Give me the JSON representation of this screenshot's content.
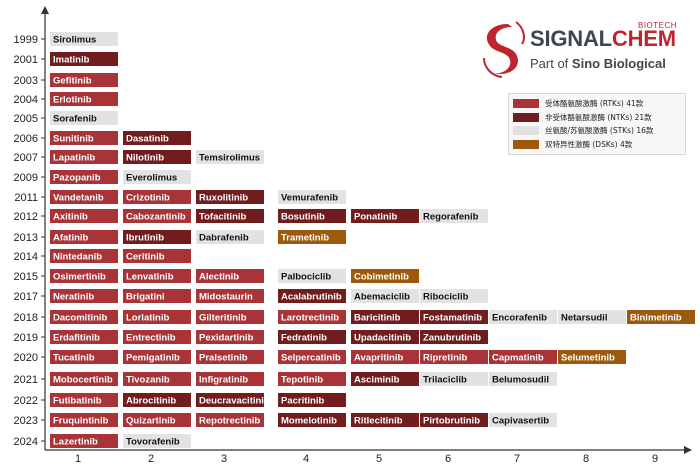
{
  "logo": {
    "brand_part1": "SIGNAL",
    "brand_part2": "CHEM",
    "biotech": "BIOTECH",
    "tagline_prefix": "Part of ",
    "tagline_bold": "Sino Biological",
    "brand_color": "#c0252f",
    "text_color": "#3f4652"
  },
  "colors": {
    "RTK": "#a83438",
    "NTK": "#711d1e",
    "STK": "#e2e2e2",
    "DSK": "#9e5a0c"
  },
  "legend": [
    {
      "key": "RTK",
      "label": "受体酪氨酸激酶 (RTKs) 41款"
    },
    {
      "key": "NTK",
      "label": "非受体酪氨酸激酶 (NTKs) 21款"
    },
    {
      "key": "STK",
      "label": "丝氨酸/苏氨酸激酶 (STKs) 16款"
    },
    {
      "key": "DSK",
      "label": "双特异性激酶 (DSKs) 4款"
    }
  ],
  "chart_data": {
    "type": "table",
    "x_ticks": [
      "1",
      "2",
      "3",
      "4",
      "5",
      "6",
      "7",
      "8",
      "9"
    ],
    "rows": [
      {
        "year": "1999",
        "drugs": [
          {
            "name": "Sirolimus",
            "type": "STK"
          }
        ]
      },
      {
        "year": "2001",
        "drugs": [
          {
            "name": "Imatinib",
            "type": "NTK"
          }
        ]
      },
      {
        "year": "2003",
        "drugs": [
          {
            "name": "Gefitinib",
            "type": "RTK"
          }
        ]
      },
      {
        "year": "2004",
        "drugs": [
          {
            "name": "Erlotinib",
            "type": "RTK"
          }
        ]
      },
      {
        "year": "2005",
        "drugs": [
          {
            "name": "Sorafenib",
            "type": "STK"
          }
        ]
      },
      {
        "year": "2006",
        "drugs": [
          {
            "name": "Sunitinib",
            "type": "RTK"
          },
          {
            "name": "Dasatinib",
            "type": "NTK"
          }
        ]
      },
      {
        "year": "2007",
        "drugs": [
          {
            "name": "Lapatinib",
            "type": "RTK"
          },
          {
            "name": "Nilotinib",
            "type": "NTK"
          },
          {
            "name": "Temsirolimus",
            "type": "STK"
          }
        ]
      },
      {
        "year": "2009",
        "drugs": [
          {
            "name": "Pazopanib",
            "type": "RTK"
          },
          {
            "name": "Everolimus",
            "type": "STK"
          }
        ]
      },
      {
        "year": "2011",
        "drugs": [
          {
            "name": "Vandetanib",
            "type": "RTK"
          },
          {
            "name": "Crizotinib",
            "type": "RTK"
          },
          {
            "name": "Ruxolitinib",
            "type": "NTK"
          },
          {
            "name": "Vemurafenib",
            "type": "STK"
          }
        ]
      },
      {
        "year": "2012",
        "drugs": [
          {
            "name": "Axitinib",
            "type": "RTK"
          },
          {
            "name": "Cabozantinib",
            "type": "RTK"
          },
          {
            "name": "Tofacitinib",
            "type": "NTK"
          },
          {
            "name": "Bosutinib",
            "type": "NTK"
          },
          {
            "name": "Ponatinib",
            "type": "NTK"
          },
          {
            "name": "Regorafenib",
            "type": "STK"
          }
        ]
      },
      {
        "year": "2013",
        "drugs": [
          {
            "name": "Afatinib",
            "type": "RTK"
          },
          {
            "name": "Ibrutinib",
            "type": "NTK"
          },
          {
            "name": "Dabrafenib",
            "type": "STK"
          },
          {
            "name": "Trametinib",
            "type": "DSK"
          }
        ]
      },
      {
        "year": "2014",
        "drugs": [
          {
            "name": "Nintedanib",
            "type": "RTK"
          },
          {
            "name": "Ceritinib",
            "type": "RTK"
          }
        ]
      },
      {
        "year": "2015",
        "drugs": [
          {
            "name": "Osimertinib",
            "type": "RTK"
          },
          {
            "name": "Lenvatinib",
            "type": "RTK"
          },
          {
            "name": "Alectinib",
            "type": "RTK"
          },
          {
            "name": "Palbociclib",
            "type": "STK"
          },
          {
            "name": "Cobimetinib",
            "type": "DSK"
          }
        ]
      },
      {
        "year": "2017",
        "drugs": [
          {
            "name": "Neratinib",
            "type": "RTK"
          },
          {
            "name": "Brigatini",
            "type": "RTK"
          },
          {
            "name": "Midostaurin",
            "type": "RTK"
          },
          {
            "name": "Acalabrutinib",
            "type": "NTK"
          },
          {
            "name": "Abemaciclib",
            "type": "STK"
          },
          {
            "name": "Ribociclib",
            "type": "STK"
          }
        ]
      },
      {
        "year": "2018",
        "drugs": [
          {
            "name": "Dacomitinib",
            "type": "RTK"
          },
          {
            "name": "Lorlatinib",
            "type": "RTK"
          },
          {
            "name": "Gilteritinib",
            "type": "RTK"
          },
          {
            "name": "Larotrectinib",
            "type": "RTK"
          },
          {
            "name": "Baricitinib",
            "type": "NTK"
          },
          {
            "name": "Fostamatinib",
            "type": "NTK"
          },
          {
            "name": "Encorafenib",
            "type": "STK"
          },
          {
            "name": "Netarsudil",
            "type": "STK"
          },
          {
            "name": "Binimetinib",
            "type": "DSK"
          }
        ]
      },
      {
        "year": "2019",
        "drugs": [
          {
            "name": "Erdafitinib",
            "type": "RTK"
          },
          {
            "name": "Entrectinib",
            "type": "RTK"
          },
          {
            "name": "Pexidartinib",
            "type": "RTK"
          },
          {
            "name": "Fedratinib",
            "type": "NTK"
          },
          {
            "name": "Upadacitinib",
            "type": "NTK"
          },
          {
            "name": "Zanubrutinib",
            "type": "NTK"
          }
        ]
      },
      {
        "year": "2020",
        "drugs": [
          {
            "name": "Tucatinib",
            "type": "RTK"
          },
          {
            "name": "Pemigatinib",
            "type": "RTK"
          },
          {
            "name": "Pralsetinib",
            "type": "RTK"
          },
          {
            "name": "Selpercatinib",
            "type": "RTK"
          },
          {
            "name": "Avapritinib",
            "type": "RTK"
          },
          {
            "name": "Ripretinib",
            "type": "RTK"
          },
          {
            "name": "Capmatinib",
            "type": "RTK"
          },
          {
            "name": "Selumetinib",
            "type": "DSK"
          }
        ]
      },
      {
        "year": "2021",
        "drugs": [
          {
            "name": "Mobocertinib",
            "type": "RTK"
          },
          {
            "name": "Tivozanib",
            "type": "RTK"
          },
          {
            "name": "Infigratinib",
            "type": "RTK"
          },
          {
            "name": "Tepotinib",
            "type": "RTK"
          },
          {
            "name": "Asciminib",
            "type": "NTK"
          },
          {
            "name": "Trilaciclib",
            "type": "STK"
          },
          {
            "name": "Belumosudil",
            "type": "STK"
          }
        ]
      },
      {
        "year": "2022",
        "drugs": [
          {
            "name": "Futibatinib",
            "type": "RTK"
          },
          {
            "name": "Abrocitinib",
            "type": "NTK"
          },
          {
            "name": "Deucravacitinib",
            "type": "NTK"
          },
          {
            "name": "Pacritinib",
            "type": "NTK"
          }
        ]
      },
      {
        "year": "2023",
        "drugs": [
          {
            "name": "Fruquintinib",
            "type": "RTK"
          },
          {
            "name": "Quizartinib",
            "type": "RTK"
          },
          {
            "name": "Repotrectinib",
            "type": "RTK"
          },
          {
            "name": "Momelotinib",
            "type": "NTK"
          },
          {
            "name": "Ritlecitinib",
            "type": "NTK"
          },
          {
            "name": "Pirtobrutinib",
            "type": "NTK"
          },
          {
            "name": "Capivasertib",
            "type": "STK"
          }
        ]
      },
      {
        "year": "2024",
        "drugs": [
          {
            "name": "Lazertinib",
            "type": "RTK"
          },
          {
            "name": "Tovorafenib",
            "type": "STK"
          }
        ]
      }
    ]
  }
}
